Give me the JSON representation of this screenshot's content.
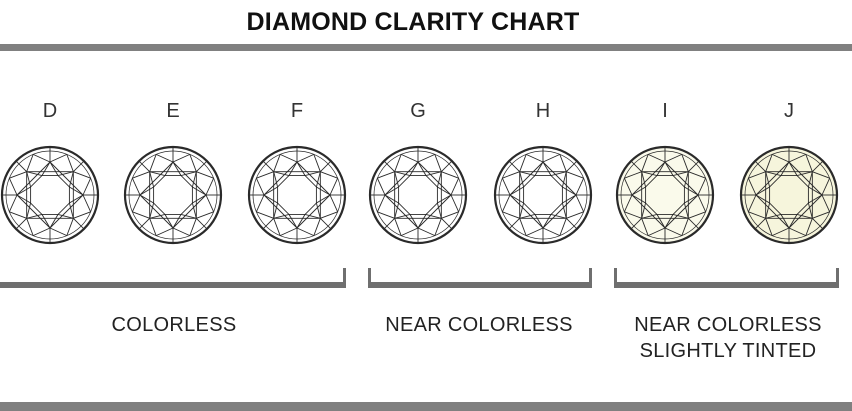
{
  "title": "DIAMOND CLARITY CHART",
  "grades": [
    {
      "letter": "D",
      "fill": "#ffffff"
    },
    {
      "letter": "E",
      "fill": "#ffffff"
    },
    {
      "letter": "F",
      "fill": "#ffffff"
    },
    {
      "letter": "G",
      "fill": "#ffffff"
    },
    {
      "letter": "H",
      "fill": "#ffffff"
    },
    {
      "letter": "I",
      "fill": "#fafaeb"
    },
    {
      "letter": "J",
      "fill": "#f6f5dc"
    }
  ],
  "groups": [
    {
      "line1": "COLORLESS",
      "line2": ""
    },
    {
      "line1": "NEAR COLORLESS",
      "line2": ""
    },
    {
      "line1": "NEAR COLORLESS",
      "line2": "SLIGHTLY TINTED"
    }
  ],
  "colors": {
    "rule": "#808080",
    "bracket": "#6f6f6f",
    "outline": "#2a2a2a"
  }
}
